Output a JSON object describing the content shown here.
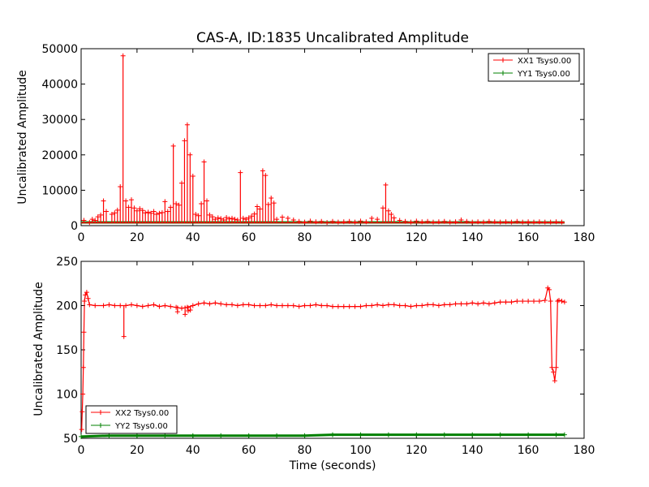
{
  "chart_data": [
    {
      "type": "line",
      "title": "CAS-A, ID:1835 Uncalibrated Amplitude",
      "xlabel": "",
      "ylabel": "Uncalibrated Amplitude",
      "xlim": [
        0,
        180
      ],
      "ylim": [
        0,
        50000
      ],
      "x_ticks": [
        "0",
        "20",
        "40",
        "60",
        "80",
        "100",
        "120",
        "140",
        "160",
        "180"
      ],
      "y_ticks": [
        "0",
        "10000",
        "20000",
        "30000",
        "40000",
        "50000"
      ],
      "grid": false,
      "legend_position": "top-right",
      "series": [
        {
          "name": "XX1 Tsys0.00",
          "color": "#ff0000",
          "baseline": {
            "start": 0,
            "end": 173,
            "value": 800
          },
          "spikes": [
            [
              1,
              1500
            ],
            [
              3,
              900
            ],
            [
              4,
              1800
            ],
            [
              5,
              1500
            ],
            [
              6,
              2500
            ],
            [
              7,
              3000
            ],
            [
              8,
              7000
            ],
            [
              9,
              4000
            ],
            [
              11,
              3200
            ],
            [
              12,
              3600
            ],
            [
              13,
              4400
            ],
            [
              14,
              11000
            ],
            [
              15,
              48000
            ],
            [
              16,
              7000
            ],
            [
              17,
              5200
            ],
            [
              18,
              7300
            ],
            [
              19,
              5000
            ],
            [
              20,
              4200
            ],
            [
              21,
              4800
            ],
            [
              22,
              4300
            ],
            [
              23,
              3600
            ],
            [
              24,
              3800
            ],
            [
              25,
              3500
            ],
            [
              26,
              4000
            ],
            [
              27,
              3200
            ],
            [
              28,
              3500
            ],
            [
              29,
              3700
            ],
            [
              30,
              6800
            ],
            [
              31,
              4000
            ],
            [
              32,
              5200
            ],
            [
              33,
              22500
            ],
            [
              34,
              6200
            ],
            [
              35,
              5800
            ],
            [
              36,
              12000
            ],
            [
              37,
              24000
            ],
            [
              38,
              28500
            ],
            [
              39,
              20000
            ],
            [
              40,
              14000
            ],
            [
              41,
              3200
            ],
            [
              42,
              2800
            ],
            [
              43,
              6200
            ],
            [
              44,
              18000
            ],
            [
              45,
              7000
            ],
            [
              46,
              3000
            ],
            [
              47,
              2500
            ],
            [
              48,
              1800
            ],
            [
              49,
              2200
            ],
            [
              50,
              2000
            ],
            [
              51,
              1600
            ],
            [
              52,
              2300
            ],
            [
              53,
              1900
            ],
            [
              54,
              2100
            ],
            [
              55,
              1800
            ],
            [
              56,
              1600
            ],
            [
              57,
              15000
            ],
            [
              58,
              2100
            ],
            [
              59,
              1800
            ],
            [
              60,
              2200
            ],
            [
              61,
              2700
            ],
            [
              62,
              3300
            ],
            [
              63,
              5400
            ],
            [
              64,
              4700
            ],
            [
              65,
              15500
            ],
            [
              66,
              14200
            ],
            [
              67,
              6000
            ],
            [
              68,
              7800
            ],
            [
              69,
              6400
            ],
            [
              70,
              1800
            ],
            [
              72,
              2400
            ],
            [
              74,
              2100
            ],
            [
              76,
              1600
            ],
            [
              78,
              1200
            ],
            [
              80,
              1000
            ],
            [
              82,
              1300
            ],
            [
              84,
              1100
            ],
            [
              86,
              1200
            ],
            [
              88,
              900
            ],
            [
              90,
              1200
            ],
            [
              92,
              1000
            ],
            [
              94,
              1100
            ],
            [
              96,
              1200
            ],
            [
              98,
              1000
            ],
            [
              100,
              1300
            ],
            [
              102,
              1100
            ],
            [
              104,
              2100
            ],
            [
              106,
              1800
            ],
            [
              108,
              5000
            ],
            [
              109,
              11500
            ],
            [
              110,
              4200
            ],
            [
              111,
              3200
            ],
            [
              112,
              2200
            ],
            [
              114,
              1500
            ],
            [
              116,
              1200
            ],
            [
              118,
              1000
            ],
            [
              120,
              1300
            ],
            [
              122,
              1100
            ],
            [
              124,
              1200
            ],
            [
              126,
              1000
            ],
            [
              128,
              1100
            ],
            [
              130,
              1200
            ],
            [
              132,
              1000
            ],
            [
              134,
              1100
            ],
            [
              136,
              1600
            ],
            [
              138,
              1200
            ],
            [
              140,
              1000
            ],
            [
              142,
              1100
            ],
            [
              144,
              1000
            ],
            [
              146,
              1200
            ],
            [
              148,
              1100
            ],
            [
              150,
              1000
            ],
            [
              152,
              1100
            ],
            [
              154,
              1000
            ],
            [
              156,
              1200
            ],
            [
              158,
              1000
            ],
            [
              160,
              1100
            ],
            [
              162,
              1000
            ],
            [
              164,
              1100
            ],
            [
              166,
              1000
            ],
            [
              168,
              1000
            ],
            [
              170,
              1100
            ],
            [
              172,
              1000
            ]
          ]
        },
        {
          "name": "YY1 Tsys0.00",
          "color": "#008000",
          "baseline": {
            "start": 0,
            "end": 173,
            "value": 900
          }
        }
      ]
    },
    {
      "type": "line",
      "title": "",
      "xlabel": "Time (seconds)",
      "ylabel": "Uncalibrated Amplitude",
      "xlim": [
        0,
        180
      ],
      "ylim": [
        50,
        250
      ],
      "x_ticks": [
        "0",
        "20",
        "40",
        "60",
        "80",
        "100",
        "120",
        "140",
        "160",
        "180"
      ],
      "y_ticks": [
        "50",
        "100",
        "150",
        "200",
        "250"
      ],
      "grid": false,
      "legend_position": "bottom-left",
      "series": [
        {
          "name": "XX2 Tsys0.00",
          "color": "#ff0000",
          "points": [
            [
              0.2,
              60
            ],
            [
              0.4,
              80
            ],
            [
              0.6,
              100
            ],
            [
              0.8,
              130
            ],
            [
              1.0,
              170
            ],
            [
              1.2,
              205
            ],
            [
              1.5,
              212
            ],
            [
              2.0,
              215
            ],
            [
              2.5,
              208
            ],
            [
              3,
              201
            ],
            [
              5,
              200
            ],
            [
              8,
              200
            ],
            [
              10,
              201
            ],
            [
              12,
              200
            ],
            [
              14,
              200
            ],
            [
              16,
              200
            ],
            [
              18,
              201
            ],
            [
              20,
              200
            ],
            [
              22,
              199
            ],
            [
              24,
              200
            ],
            [
              26,
              201
            ],
            [
              28,
              199
            ],
            [
              30,
              200
            ],
            [
              32,
              199
            ],
            [
              34,
              198
            ],
            [
              36,
              197
            ],
            [
              38,
              198
            ],
            [
              40,
              200
            ],
            [
              42,
              202
            ],
            [
              44,
              203
            ],
            [
              46,
              202
            ],
            [
              48,
              203
            ],
            [
              50,
              202
            ],
            [
              52,
              201
            ],
            [
              54,
              201
            ],
            [
              56,
              200
            ],
            [
              58,
              201
            ],
            [
              60,
              201
            ],
            [
              62,
              200
            ],
            [
              64,
              200
            ],
            [
              66,
              200
            ],
            [
              68,
              201
            ],
            [
              70,
              200
            ],
            [
              72,
              200
            ],
            [
              74,
              200
            ],
            [
              76,
              200
            ],
            [
              78,
              199
            ],
            [
              80,
              200
            ],
            [
              82,
              200
            ],
            [
              84,
              201
            ],
            [
              86,
              200
            ],
            [
              88,
              200
            ],
            [
              90,
              199
            ],
            [
              92,
              199
            ],
            [
              94,
              199
            ],
            [
              96,
              199
            ],
            [
              98,
              199
            ],
            [
              100,
              199
            ],
            [
              102,
              200
            ],
            [
              104,
              200
            ],
            [
              106,
              201
            ],
            [
              108,
              200
            ],
            [
              110,
              201
            ],
            [
              112,
              201
            ],
            [
              114,
              200
            ],
            [
              116,
              200
            ],
            [
              118,
              199
            ],
            [
              120,
              200
            ],
            [
              122,
              200
            ],
            [
              124,
              201
            ],
            [
              126,
              201
            ],
            [
              128,
              200
            ],
            [
              130,
              201
            ],
            [
              132,
              201
            ],
            [
              134,
              202
            ],
            [
              136,
              202
            ],
            [
              138,
              202
            ],
            [
              140,
              203
            ],
            [
              142,
              202
            ],
            [
              144,
              203
            ],
            [
              146,
              202
            ],
            [
              148,
              203
            ],
            [
              150,
              204
            ],
            [
              152,
              204
            ],
            [
              154,
              204
            ],
            [
              156,
              205
            ],
            [
              158,
              205
            ],
            [
              160,
              205
            ],
            [
              162,
              205
            ],
            [
              164,
              205
            ],
            [
              166,
              206
            ],
            [
              167,
              220
            ],
            [
              167.5,
              218
            ],
            [
              168,
              205
            ],
            [
              168.5,
              130
            ],
            [
              169,
              125
            ],
            [
              169.5,
              115
            ],
            [
              170,
              130
            ],
            [
              170.5,
              205
            ],
            [
              171,
              206
            ],
            [
              172,
              205
            ],
            [
              173,
              204
            ]
          ],
          "spikes": [
            [
              15.3,
              165
            ],
            [
              34.5,
              193
            ],
            [
              37.2,
              190
            ],
            [
              38.3,
              194
            ],
            [
              39.1,
              195
            ]
          ]
        },
        {
          "name": "YY2 Tsys0.00",
          "color": "#008000",
          "points": [
            [
              0,
              52
            ],
            [
              10,
              53
            ],
            [
              20,
              53
            ],
            [
              30,
              53
            ],
            [
              40,
              53
            ],
            [
              50,
              53
            ],
            [
              60,
              53
            ],
            [
              70,
              53
            ],
            [
              80,
              53
            ],
            [
              90,
              54
            ],
            [
              100,
              54
            ],
            [
              110,
              54
            ],
            [
              120,
              54
            ],
            [
              130,
              54
            ],
            [
              140,
              54
            ],
            [
              150,
              54
            ],
            [
              160,
              54
            ],
            [
              170,
              54
            ],
            [
              173,
              54
            ]
          ]
        }
      ]
    }
  ]
}
